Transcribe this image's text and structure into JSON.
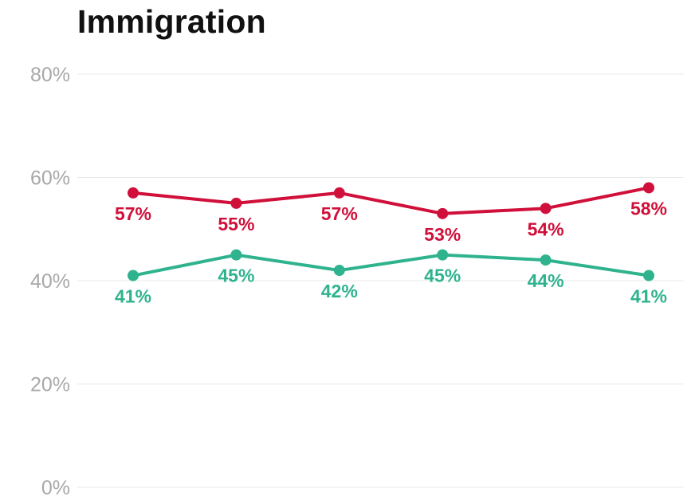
{
  "chart_data": {
    "type": "line",
    "title": "Immigration",
    "xlabel": "",
    "ylabel": "",
    "categories": [
      "",
      "",
      "",
      "",
      "",
      ""
    ],
    "ylim": [
      0,
      80
    ],
    "yticks": [
      0,
      20,
      40,
      60,
      80
    ],
    "ytick_labels": [
      "0%",
      "20%",
      "40%",
      "60%",
      "80%"
    ],
    "grid": true,
    "legend": "none",
    "series": [
      {
        "color": "#d0103a",
        "values": [
          57,
          55,
          57,
          53,
          54,
          58
        ],
        "labels": [
          "57%",
          "55%",
          "57%",
          "53%",
          "54%",
          "58%"
        ],
        "label_position": "below"
      },
      {
        "color": "#2fb38e",
        "values": [
          41,
          45,
          42,
          45,
          44,
          41
        ],
        "labels": [
          "41%",
          "45%",
          "42%",
          "45%",
          "44%",
          "41%"
        ],
        "label_position": "below"
      }
    ]
  },
  "colors": {
    "grid": "#e8e8e8",
    "tick_text": "#a8a8a8",
    "title_text": "#111111"
  }
}
